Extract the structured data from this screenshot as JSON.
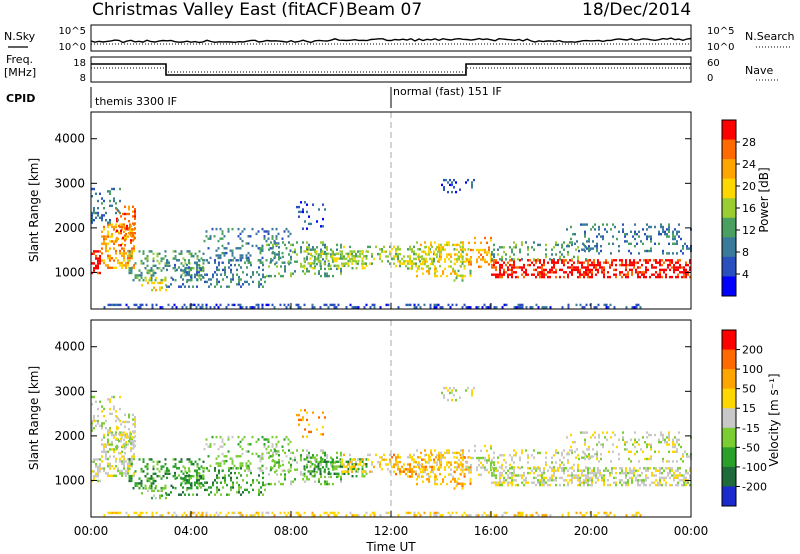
{
  "header": {
    "title": "Christmas Valley East (fitACF)",
    "beam": "Beam 07",
    "date": "18/Dec/2014"
  },
  "summary_panels": {
    "nsky": {
      "left_label": "N.Sky",
      "left_ticks": [
        "10^5",
        "10^0"
      ],
      "right_ticks": [
        "10^5",
        "10^0"
      ],
      "right_label": "N.Search"
    },
    "freq": {
      "left_label_1": "Freq.",
      "left_label_2": "[MHz]",
      "left_ticks": [
        "18",
        "8"
      ],
      "right_ticks": [
        "60",
        "0"
      ],
      "right_label": "Nave"
    },
    "cpid": {
      "label": "CPID",
      "modes": [
        "themis 3300 IF",
        "normal (fast) 151 IF"
      ]
    }
  },
  "chart_data": [
    {
      "type": "heatmap",
      "name": "power",
      "ylabel": "Slant Range [km]",
      "yticks": [
        1000,
        2000,
        3000,
        4000
      ],
      "ylim": [
        180,
        4600
      ],
      "xlim": [
        0,
        24
      ],
      "colorbar": {
        "label": "Power [dB]",
        "ticks": [
          4,
          8,
          12,
          16,
          20,
          24,
          28
        ],
        "colors": [
          "#0000ff",
          "#2a4fbf",
          "#3a7a9a",
          "#4aa060",
          "#9acd32",
          "#ffd700",
          "#ffa500",
          "#ff6a00",
          "#ff0000"
        ]
      }
    },
    {
      "type": "heatmap",
      "name": "velocity",
      "ylabel": "Slant Range [km]",
      "yticks": [
        1000,
        2000,
        3000,
        4000
      ],
      "ylim": [
        180,
        4600
      ],
      "xlim": [
        0,
        24
      ],
      "xlabel": "Time UT",
      "xticks": [
        "00:00",
        "04:00",
        "08:00",
        "12:00",
        "16:00",
        "20:00",
        "00:00"
      ],
      "colorbar": {
        "label": "Velocity [m s⁻¹]",
        "ticks": [
          200,
          100,
          50,
          15,
          -15,
          -50,
          -100,
          -200
        ],
        "colors": [
          "#1a2acc",
          "#1f6a3a",
          "#2aa02a",
          "#7acd32",
          "#c8c8c8",
          "#ffd700",
          "#ffa500",
          "#ff6a00",
          "#ff0000"
        ]
      }
    }
  ]
}
